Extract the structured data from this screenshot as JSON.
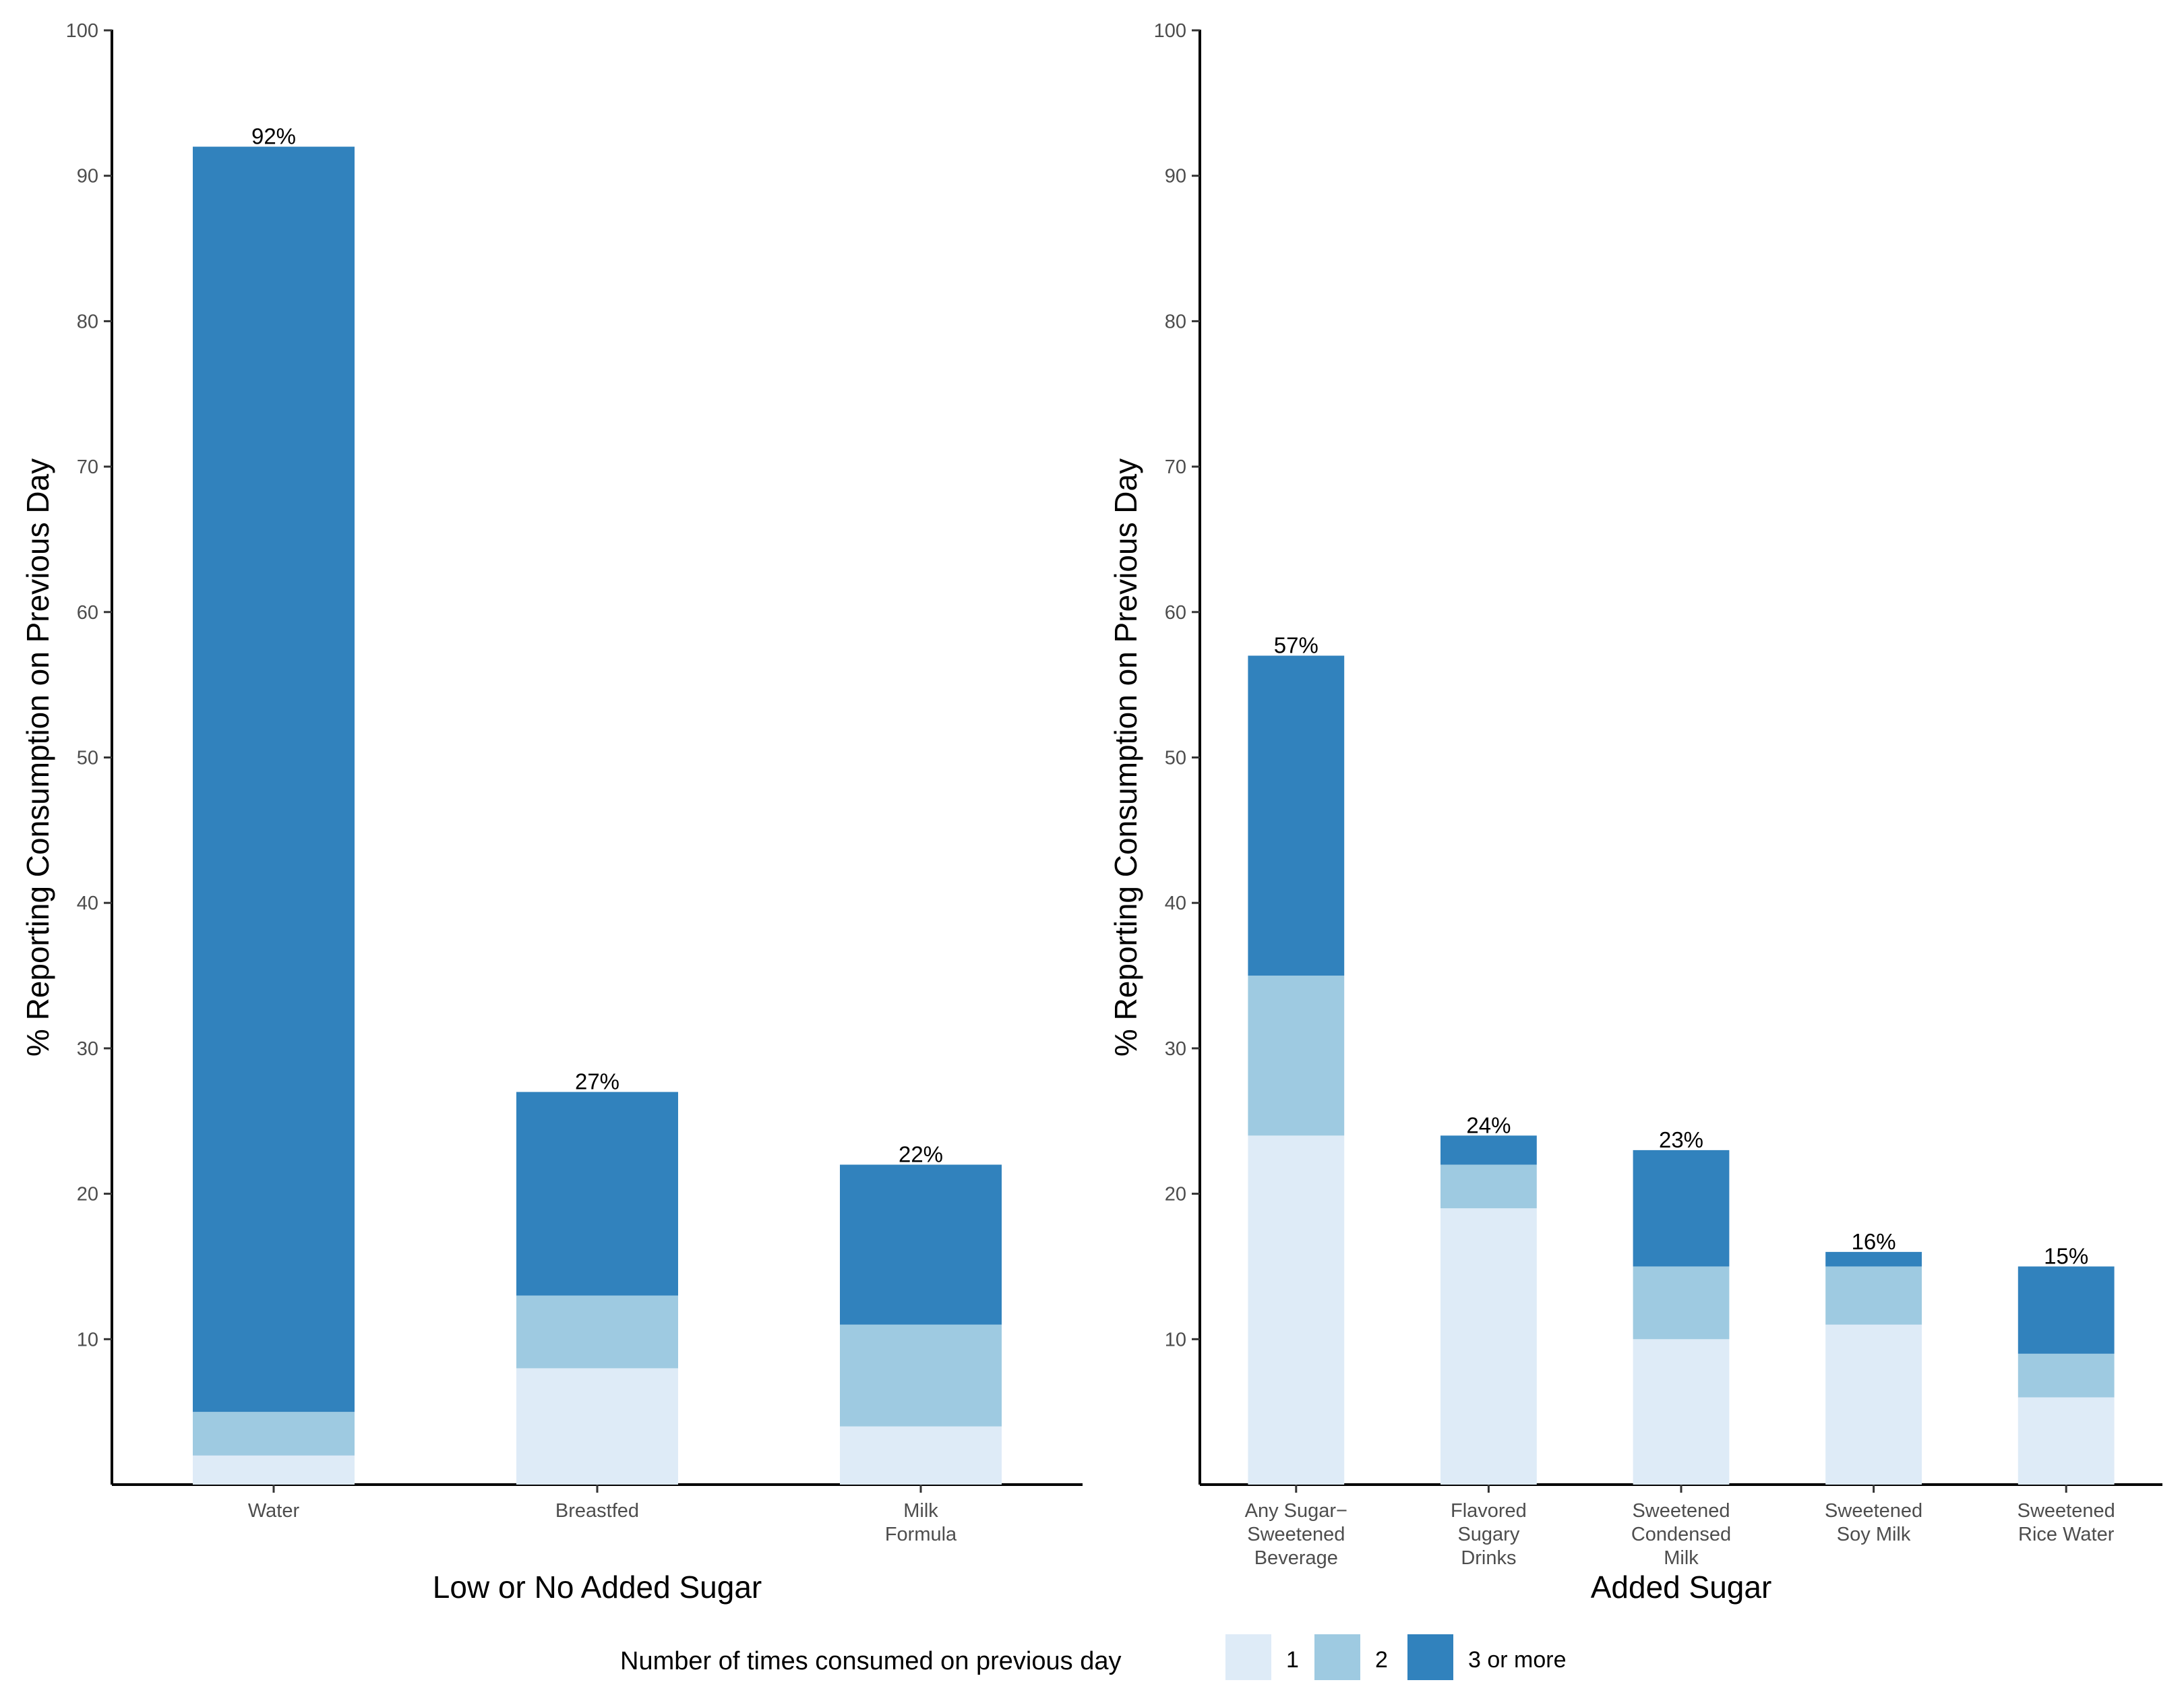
{
  "chart_data": [
    {
      "type": "bar",
      "stacked": true,
      "categories": [
        [
          "Water"
        ],
        [
          "Breastfed"
        ],
        [
          "Milk",
          "Formula"
        ]
      ],
      "series": [
        {
          "name": "1",
          "values": [
            2,
            8,
            4
          ]
        },
        {
          "name": "2",
          "values": [
            3,
            5,
            7
          ]
        },
        {
          "name": "3 or more",
          "values": [
            87,
            14,
            11
          ]
        }
      ],
      "totals": [
        "92%",
        "27%",
        "22%"
      ],
      "xlabel": "Low or No Added Sugar",
      "ylabel": "% Reporting Consumption on Previous Day",
      "ylim": [
        0,
        100
      ],
      "yticks": [
        10,
        20,
        30,
        40,
        50,
        60,
        70,
        80,
        90,
        100
      ],
      "grid": false
    },
    {
      "type": "bar",
      "stacked": true,
      "categories": [
        [
          "Any Sugar−",
          "Sweetened",
          "Beverage"
        ],
        [
          "Flavored",
          "Sugary",
          "Drinks"
        ],
        [
          "Sweetened",
          "Condensed",
          "Milk"
        ],
        [
          "Sweetened",
          "Soy Milk"
        ],
        [
          "Sweetened",
          "Rice Water"
        ]
      ],
      "series": [
        {
          "name": "1",
          "values": [
            24,
            19,
            10,
            11,
            6
          ]
        },
        {
          "name": "2",
          "values": [
            11,
            3,
            5,
            4,
            3
          ]
        },
        {
          "name": "3 or more",
          "values": [
            22,
            2,
            8,
            1,
            6
          ]
        }
      ],
      "totals": [
        "57%",
        "24%",
        "23%",
        "16%",
        "15%"
      ],
      "xlabel": "Added Sugar",
      "ylabel": "% Reporting Consumption on Previous Day",
      "ylim": [
        0,
        100
      ],
      "yticks": [
        10,
        20,
        30,
        40,
        50,
        60,
        70,
        80,
        90,
        100
      ],
      "grid": false
    }
  ],
  "legend": {
    "title": "Number of times consumed on previous day",
    "position": "bottom",
    "items": [
      {
        "label": "1",
        "color": "#deebf7"
      },
      {
        "label": "2",
        "color": "#9ecae1"
      },
      {
        "label": "3 or more",
        "color": "#3182bd"
      }
    ]
  }
}
